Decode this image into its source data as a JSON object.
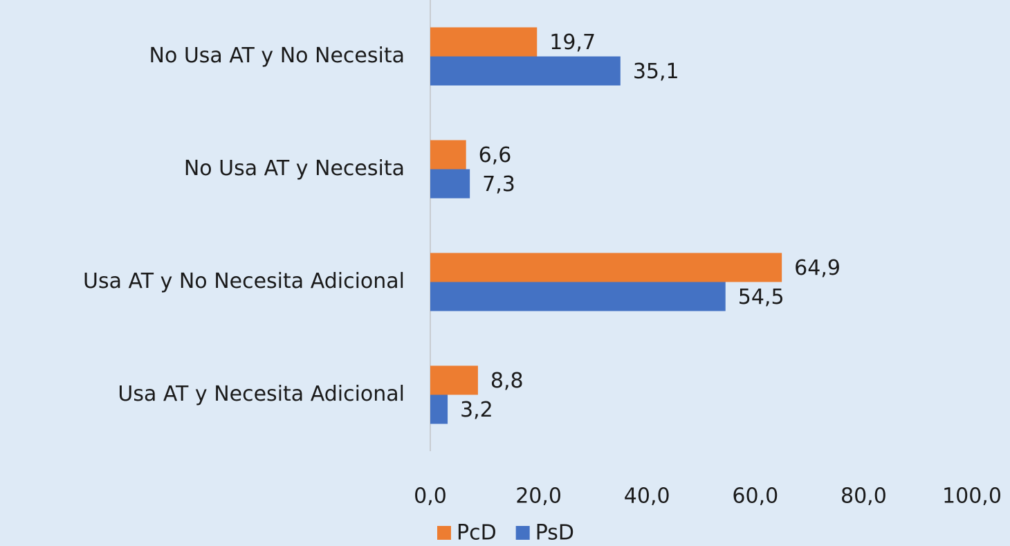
{
  "chart_data": {
    "type": "bar",
    "orientation": "horizontal",
    "categories": [
      "No Usa AT y No Necesita",
      "No Usa AT y Necesita",
      "Usa AT y No Necesita Adicional",
      "Usa AT y Necesita Adicional"
    ],
    "series": [
      {
        "name": "PcD",
        "color": "#ed7d31",
        "values": [
          19.7,
          6.6,
          64.9,
          8.8
        ],
        "value_labels": [
          "19,7",
          "6,6",
          "64,9",
          "8,8"
        ]
      },
      {
        "name": "PsD",
        "color": "#4472c4",
        "values": [
          35.1,
          7.3,
          54.5,
          3.2
        ],
        "value_labels": [
          "35,1",
          "7,3",
          "54,5",
          "3,2"
        ]
      }
    ],
    "xlim": [
      0,
      100
    ],
    "xticks": [
      {
        "value": 0,
        "label": "0,0"
      },
      {
        "value": 20,
        "label": "20,0"
      },
      {
        "value": 40,
        "label": "40,0"
      },
      {
        "value": 60,
        "label": "60,0"
      },
      {
        "value": 80,
        "label": "80,0"
      },
      {
        "value": 100,
        "label": "100,0"
      }
    ],
    "grid": false,
    "legend": "bottom"
  }
}
